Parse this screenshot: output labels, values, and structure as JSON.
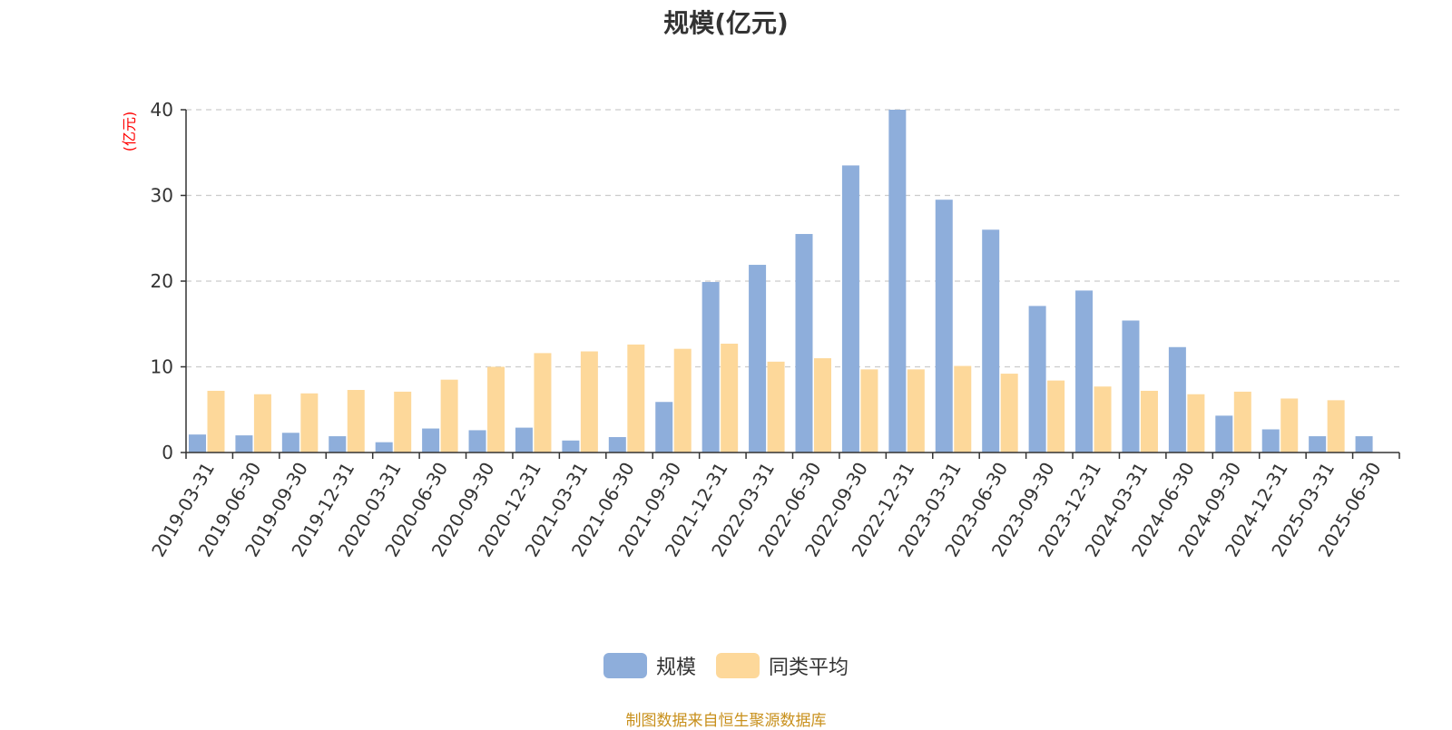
{
  "chart_data": {
    "type": "bar",
    "title": "规模(亿元)",
    "ylabel": "(亿元)",
    "xlabel": "",
    "ylim": [
      0,
      40
    ],
    "yticks": [
      0,
      10,
      20,
      30,
      40
    ],
    "grid": true,
    "legend_placement": "bottom-center",
    "categories": [
      "2019-03-31",
      "2019-06-30",
      "2019-09-30",
      "2019-12-31",
      "2020-03-31",
      "2020-06-30",
      "2020-09-30",
      "2020-12-31",
      "2021-03-31",
      "2021-06-30",
      "2021-09-30",
      "2021-12-31",
      "2022-03-31",
      "2022-06-30",
      "2022-09-30",
      "2022-12-31",
      "2023-03-31",
      "2023-06-30",
      "2023-09-30",
      "2023-12-31",
      "2024-03-31",
      "2024-06-30",
      "2024-09-30",
      "2024-12-31",
      "2025-03-31",
      "2025-06-30"
    ],
    "series": [
      {
        "name": "规模",
        "color": "#8eaedb",
        "values": [
          2.1,
          2.0,
          2.3,
          1.9,
          1.2,
          2.8,
          2.6,
          2.9,
          1.4,
          1.8,
          5.9,
          19.9,
          21.9,
          25.5,
          33.5,
          40.0,
          29.5,
          26.0,
          17.1,
          18.9,
          15.4,
          12.3,
          4.3,
          2.7,
          1.9,
          1.9
        ]
      },
      {
        "name": "同类平均",
        "color": "#fdd89a",
        "values": [
          7.2,
          6.8,
          6.9,
          7.3,
          7.1,
          8.5,
          10.0,
          11.6,
          11.8,
          12.6,
          12.1,
          12.7,
          10.6,
          11.0,
          9.7,
          9.7,
          10.1,
          9.2,
          8.4,
          7.7,
          7.2,
          6.8,
          7.1,
          6.3,
          6.1,
          null
        ]
      }
    ]
  },
  "footer": {
    "source": "制图数据来自恒生聚源数据库"
  }
}
